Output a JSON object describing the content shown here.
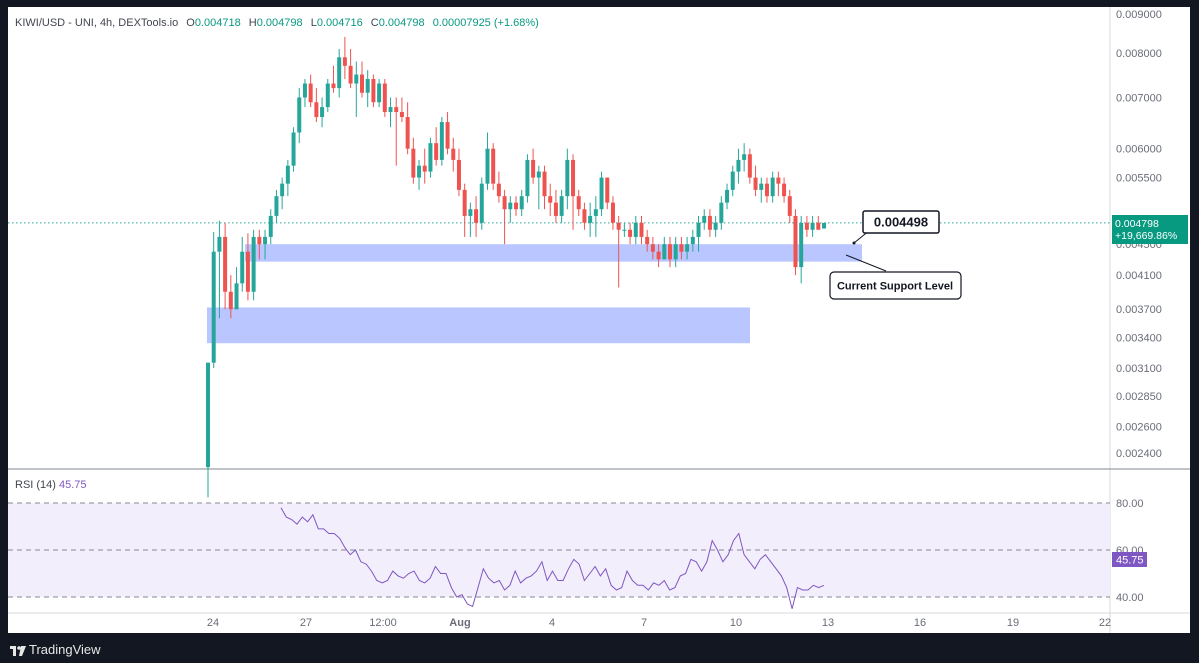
{
  "header": {
    "symbol": "KIWI/USD - UNI, 4h, DEXTools.io",
    "o_label": "O",
    "o_value": "0.004718",
    "h_label": "H",
    "h_value": "0.004798",
    "l_label": "L",
    "l_value": "0.004716",
    "c_label": "C",
    "c_value": "0.004798",
    "change": "0.00007925 (+1.68%)"
  },
  "price_axis": {
    "ticks": [
      "0.009000",
      "0.008000",
      "0.007000",
      "0.006000",
      "0.005500",
      "0.004800",
      "0.004500",
      "0.004100",
      "0.003700",
      "0.003400",
      "0.003100",
      "0.002850",
      "0.002600",
      "0.002400"
    ],
    "current_price": "0.004798",
    "current_change": "+19,669.86%"
  },
  "time_axis": {
    "ticks": [
      "24",
      "27",
      "12:00",
      "Aug",
      "4",
      "7",
      "10",
      "13",
      "16",
      "19",
      "22"
    ]
  },
  "annotations": {
    "price_callout": "0.004498",
    "support_label": "Current Support Level"
  },
  "rsi": {
    "label": "RSI (14)",
    "value": "45.75",
    "ticks": [
      "80.00",
      "60.00",
      "40.00"
    ],
    "current": "45.75"
  },
  "brand": {
    "name": "TradingView"
  },
  "colors": {
    "up": "#26a69a",
    "down": "#ef5350",
    "zone": "#aebcff",
    "rsi": "#7e57c2",
    "rsi_band": "#f3eefb"
  },
  "chart_data": {
    "type": "candlestick",
    "title": "KIWI/USD - UNI, 4h, DEXTools.io",
    "y_scale": "log",
    "ylim": [
      0.0023,
      0.0091
    ],
    "x": [
      "24",
      "27",
      "12:00",
      "Aug",
      "4",
      "7",
      "10",
      "13",
      "16",
      "19",
      "22"
    ],
    "current_price": 0.004798,
    "support_zones": [
      {
        "low": 0.00427,
        "high": 0.0045
      },
      {
        "low": 0.00334,
        "high": 0.00372
      }
    ],
    "candles": [
      [
        0.0023,
        0.00315,
        0.0021,
        0.00315
      ],
      [
        0.00315,
        0.00467,
        0.0031,
        0.0044
      ],
      [
        0.0044,
        0.00483,
        0.0036,
        0.0046
      ],
      [
        0.0046,
        0.0048,
        0.0037,
        0.0039
      ],
      [
        0.0039,
        0.0041,
        0.0036,
        0.0037
      ],
      [
        0.0037,
        0.0042,
        0.0037,
        0.004
      ],
      [
        0.004,
        0.0046,
        0.0039,
        0.0044
      ],
      [
        0.0044,
        0.00465,
        0.0038,
        0.0039
      ],
      [
        0.0039,
        0.0047,
        0.0038,
        0.0046
      ],
      [
        0.0046,
        0.0047,
        0.0043,
        0.0045
      ],
      [
        0.0045,
        0.0047,
        0.0043,
        0.0046
      ],
      [
        0.0046,
        0.005,
        0.0045,
        0.0049
      ],
      [
        0.0049,
        0.0053,
        0.0048,
        0.0052
      ],
      [
        0.0052,
        0.0055,
        0.005,
        0.0054
      ],
      [
        0.0054,
        0.0058,
        0.0052,
        0.0057
      ],
      [
        0.0057,
        0.0064,
        0.0056,
        0.0063
      ],
      [
        0.0063,
        0.0072,
        0.0061,
        0.007
      ],
      [
        0.007,
        0.0074,
        0.0068,
        0.0073
      ],
      [
        0.0073,
        0.0075,
        0.0068,
        0.0069
      ],
      [
        0.0069,
        0.0072,
        0.0065,
        0.0066
      ],
      [
        0.0066,
        0.007,
        0.0064,
        0.0068
      ],
      [
        0.0068,
        0.0074,
        0.0067,
        0.0073
      ],
      [
        0.0073,
        0.0077,
        0.0071,
        0.0072
      ],
      [
        0.0072,
        0.0081,
        0.007,
        0.0079
      ],
      [
        0.0079,
        0.0084,
        0.0074,
        0.0077
      ],
      [
        0.0077,
        0.0081,
        0.0072,
        0.0073
      ],
      [
        0.0073,
        0.0078,
        0.0066,
        0.0075
      ],
      [
        0.0075,
        0.0078,
        0.007,
        0.0071
      ],
      [
        0.0071,
        0.0076,
        0.0068,
        0.0074
      ],
      [
        0.0074,
        0.0075,
        0.0068,
        0.0069
      ],
      [
        0.0069,
        0.0074,
        0.0068,
        0.0073
      ],
      [
        0.0073,
        0.0074,
        0.0066,
        0.0067
      ],
      [
        0.0067,
        0.007,
        0.0064,
        0.0068
      ],
      [
        0.0068,
        0.007,
        0.0057,
        0.0067
      ],
      [
        0.0067,
        0.007,
        0.0065,
        0.0066
      ],
      [
        0.0066,
        0.0069,
        0.0059,
        0.006
      ],
      [
        0.006,
        0.0062,
        0.0054,
        0.0055
      ],
      [
        0.0055,
        0.0058,
        0.0053,
        0.0057
      ],
      [
        0.0057,
        0.006,
        0.0054,
        0.0056
      ],
      [
        0.0056,
        0.0062,
        0.0055,
        0.0061
      ],
      [
        0.0061,
        0.0064,
        0.0057,
        0.0058
      ],
      [
        0.0058,
        0.0066,
        0.0057,
        0.0065
      ],
      [
        0.0065,
        0.0067,
        0.0059,
        0.006
      ],
      [
        0.006,
        0.0062,
        0.0056,
        0.0058
      ],
      [
        0.0058,
        0.006,
        0.0052,
        0.0053
      ],
      [
        0.0053,
        0.0054,
        0.0046,
        0.0049
      ],
      [
        0.0049,
        0.0051,
        0.0046,
        0.005
      ],
      [
        0.005,
        0.0052,
        0.0046,
        0.0048
      ],
      [
        0.0048,
        0.0055,
        0.0047,
        0.0054
      ],
      [
        0.0054,
        0.0063,
        0.0053,
        0.006
      ],
      [
        0.006,
        0.0061,
        0.0053,
        0.0054
      ],
      [
        0.0054,
        0.0056,
        0.0051,
        0.0052
      ],
      [
        0.0052,
        0.0053,
        0.0045,
        0.005
      ],
      [
        0.005,
        0.0052,
        0.0048,
        0.0051
      ],
      [
        0.0051,
        0.0052,
        0.0049,
        0.005
      ],
      [
        0.005,
        0.0053,
        0.0049,
        0.0052
      ],
      [
        0.0052,
        0.0059,
        0.0051,
        0.0058
      ],
      [
        0.0058,
        0.006,
        0.0054,
        0.0055
      ],
      [
        0.0055,
        0.0057,
        0.005,
        0.0056
      ],
      [
        0.0056,
        0.0057,
        0.005,
        0.0052
      ],
      [
        0.0052,
        0.0054,
        0.0049,
        0.0051
      ],
      [
        0.0051,
        0.0053,
        0.0048,
        0.0049
      ],
      [
        0.0049,
        0.0053,
        0.0048,
        0.0052
      ],
      [
        0.0052,
        0.006,
        0.005,
        0.0058
      ],
      [
        0.0058,
        0.0059,
        0.0047,
        0.0052
      ],
      [
        0.0052,
        0.0053,
        0.0049,
        0.005
      ],
      [
        0.005,
        0.0051,
        0.0047,
        0.0048
      ],
      [
        0.0048,
        0.0051,
        0.0046,
        0.0049
      ],
      [
        0.0049,
        0.0052,
        0.0046,
        0.005
      ],
      [
        0.005,
        0.0056,
        0.0049,
        0.0055
      ],
      [
        0.0055,
        0.0055,
        0.005,
        0.0051
      ],
      [
        0.0051,
        0.0052,
        0.0047,
        0.0048
      ],
      [
        0.0048,
        0.0049,
        0.00395,
        0.0047
      ],
      [
        0.0047,
        0.0048,
        0.0046,
        0.0047
      ],
      [
        0.0047,
        0.0048,
        0.0045,
        0.0046
      ],
      [
        0.0046,
        0.0049,
        0.0045,
        0.0048
      ],
      [
        0.0048,
        0.0049,
        0.0045,
        0.0046
      ],
      [
        0.0046,
        0.0047,
        0.0044,
        0.0045
      ],
      [
        0.0045,
        0.0046,
        0.0043,
        0.0044
      ],
      [
        0.0044,
        0.0045,
        0.0042,
        0.0043
      ],
      [
        0.0043,
        0.0046,
        0.0043,
        0.0045
      ],
      [
        0.0045,
        0.0046,
        0.0042,
        0.0043
      ],
      [
        0.0043,
        0.0046,
        0.0042,
        0.0045
      ],
      [
        0.0045,
        0.0046,
        0.0043,
        0.0044
      ],
      [
        0.0044,
        0.0046,
        0.0043,
        0.0045
      ],
      [
        0.0045,
        0.0047,
        0.0044,
        0.0046
      ],
      [
        0.0046,
        0.0049,
        0.0044,
        0.0048
      ],
      [
        0.0048,
        0.005,
        0.0047,
        0.0049
      ],
      [
        0.0049,
        0.005,
        0.0046,
        0.0047
      ],
      [
        0.0047,
        0.0049,
        0.0046,
        0.0048
      ],
      [
        0.0048,
        0.0052,
        0.0047,
        0.0051
      ],
      [
        0.0051,
        0.0054,
        0.005,
        0.0053
      ],
      [
        0.0053,
        0.0057,
        0.0052,
        0.0056
      ],
      [
        0.0056,
        0.006,
        0.0054,
        0.0058
      ],
      [
        0.0058,
        0.0061,
        0.0056,
        0.0059
      ],
      [
        0.0059,
        0.006,
        0.0054,
        0.0055
      ],
      [
        0.0055,
        0.0057,
        0.0052,
        0.0053
      ],
      [
        0.0053,
        0.0055,
        0.0051,
        0.0054
      ],
      [
        0.0054,
        0.0055,
        0.0051,
        0.0052
      ],
      [
        0.0052,
        0.0056,
        0.0051,
        0.0055
      ],
      [
        0.0055,
        0.0056,
        0.0052,
        0.0054
      ],
      [
        0.0054,
        0.0055,
        0.0051,
        0.0052
      ],
      [
        0.0052,
        0.0053,
        0.0048,
        0.0049
      ],
      [
        0.0049,
        0.005,
        0.0041,
        0.0042
      ],
      [
        0.0042,
        0.0049,
        0.004,
        0.0048
      ],
      [
        0.0048,
        0.0049,
        0.0046,
        0.0047
      ],
      [
        0.0047,
        0.0049,
        0.0046,
        0.0048
      ],
      [
        0.0048,
        0.0049,
        0.0047,
        0.0047
      ],
      [
        0.004718,
        0.004798,
        0.004716,
        0.004798
      ]
    ],
    "rsi_values": [
      78,
      74,
      73,
      71,
      74,
      72,
      75,
      69,
      69,
      67,
      67,
      65,
      61,
      58,
      60,
      55,
      54,
      51,
      47,
      46,
      47,
      51,
      49,
      48,
      50,
      51,
      47,
      46,
      48,
      53,
      50,
      50,
      44,
      40,
      41,
      37,
      36,
      44,
      52,
      48,
      46,
      47,
      43,
      45,
      51,
      46,
      48,
      49,
      51,
      55,
      47,
      51,
      47,
      47,
      52,
      56,
      54,
      47,
      50,
      53,
      49,
      52,
      45,
      43,
      44,
      51,
      47,
      45,
      45,
      43,
      46,
      45,
      47,
      43,
      44,
      49,
      50,
      56,
      55,
      51,
      55,
      64,
      60,
      55,
      58,
      64,
      67,
      58,
      55,
      52,
      56,
      58,
      55,
      52,
      49,
      44,
      35,
      44,
      43,
      43,
      45,
      44,
      45
    ]
  }
}
